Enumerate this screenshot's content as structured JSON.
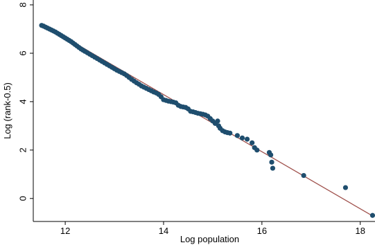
{
  "chart_data": {
    "type": "scatter",
    "title": "",
    "xlabel": "Log population",
    "ylabel": "Log (rank-0.5)",
    "xlim": [
      11.35,
      18.3
    ],
    "ylim": [
      -0.95,
      8.2
    ],
    "xticks": [
      12,
      14,
      16,
      18
    ],
    "yticks": [
      0,
      2,
      4,
      6,
      8
    ],
    "grid": false,
    "legend": "none",
    "colors": {
      "points": "#1f4e6e",
      "fit_line": "#a0524d",
      "axis": "#000000"
    },
    "fit_line": {
      "x": [
        11.55,
        18.25
      ],
      "y": [
        7.18,
        -0.72
      ]
    },
    "series": [
      {
        "type": "scatter",
        "x": [
          11.52,
          11.56,
          11.6,
          11.64,
          11.68,
          11.72,
          11.76,
          11.8,
          11.84,
          11.88,
          11.92,
          11.96,
          12.0,
          12.04,
          12.08,
          12.12,
          12.16,
          12.2,
          12.24,
          12.28,
          12.32,
          12.36,
          12.4,
          12.45,
          12.5,
          12.55,
          12.6,
          12.65,
          12.7,
          12.75,
          12.8,
          12.85,
          12.9,
          12.95,
          13.0,
          13.05,
          13.1,
          13.15,
          13.2,
          13.25,
          13.3,
          13.35,
          13.4,
          13.45,
          13.5,
          13.55,
          13.6,
          13.65,
          13.7,
          13.75,
          13.8,
          13.85,
          13.9,
          13.95,
          14.0,
          14.05,
          14.1,
          14.15,
          14.2,
          14.25,
          14.3,
          14.35,
          14.4,
          14.45,
          14.5,
          14.55,
          14.6,
          14.65,
          14.7,
          14.75,
          14.8,
          14.85,
          14.9,
          14.95,
          15.0,
          15.05,
          15.1,
          15.12,
          15.15,
          15.2,
          15.25,
          15.3,
          15.35,
          15.5,
          15.6,
          15.7,
          15.8,
          15.85,
          15.9,
          16.15,
          16.18,
          16.2,
          16.22,
          16.85,
          17.7,
          18.25
        ],
        "y": [
          7.15,
          7.12,
          7.08,
          7.04,
          7.0,
          6.96,
          6.92,
          6.88,
          6.83,
          6.78,
          6.73,
          6.68,
          6.63,
          6.58,
          6.53,
          6.48,
          6.42,
          6.36,
          6.3,
          6.24,
          6.18,
          6.13,
          6.08,
          6.02,
          5.96,
          5.9,
          5.84,
          5.78,
          5.72,
          5.66,
          5.6,
          5.54,
          5.48,
          5.42,
          5.36,
          5.3,
          5.25,
          5.2,
          5.15,
          5.08,
          5.0,
          4.92,
          4.85,
          4.78,
          4.72,
          4.65,
          4.6,
          4.55,
          4.5,
          4.45,
          4.4,
          4.36,
          4.3,
          4.2,
          4.08,
          4.05,
          4.02,
          4.0,
          3.98,
          3.95,
          3.85,
          3.8,
          3.78,
          3.76,
          3.7,
          3.6,
          3.58,
          3.55,
          3.52,
          3.5,
          3.48,
          3.45,
          3.4,
          3.3,
          3.2,
          3.1,
          3.2,
          3.0,
          2.9,
          2.8,
          2.75,
          2.72,
          2.7,
          2.6,
          2.5,
          2.45,
          2.3,
          2.1,
          2.0,
          1.9,
          1.8,
          1.5,
          1.25,
          0.95,
          0.45,
          -0.7
        ]
      }
    ]
  }
}
